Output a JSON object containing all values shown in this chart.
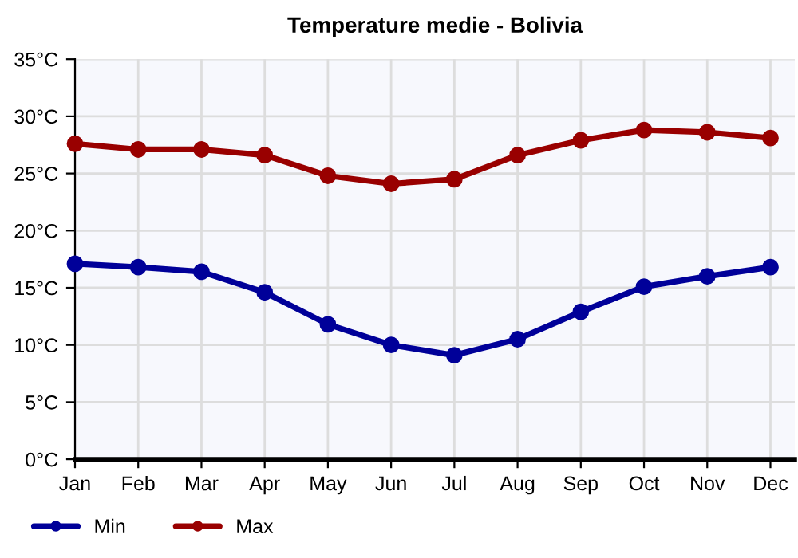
{
  "chart_data": {
    "type": "line",
    "title": "Temperature medie - Bolivia",
    "categories": [
      "Jan",
      "Feb",
      "Mar",
      "Apr",
      "May",
      "Jun",
      "Jul",
      "Aug",
      "Sep",
      "Oct",
      "Nov",
      "Dec"
    ],
    "series": [
      {
        "name": "Min",
        "color": "#000099",
        "values": [
          17.1,
          16.8,
          16.4,
          14.6,
          11.8,
          10.0,
          9.1,
          10.5,
          12.9,
          15.1,
          16.0,
          16.8
        ]
      },
      {
        "name": "Max",
        "color": "#990000",
        "values": [
          27.6,
          27.1,
          27.1,
          26.6,
          24.8,
          24.1,
          24.5,
          26.6,
          27.9,
          28.8,
          28.6,
          28.1
        ]
      }
    ],
    "ylim": [
      0,
      35
    ],
    "yticks": [
      {
        "value": 0,
        "label": "0°C"
      },
      {
        "value": 5,
        "label": "5°C"
      },
      {
        "value": 10,
        "label": "10°C"
      },
      {
        "value": 15,
        "label": "15°C"
      },
      {
        "value": 20,
        "label": "20°C"
      },
      {
        "value": 25,
        "label": "25°C"
      },
      {
        "value": 30,
        "label": "30°C"
      },
      {
        "value": 35,
        "label": "35°C"
      }
    ],
    "grid": true,
    "legend": "bottom left",
    "marker": "circle",
    "line_style": "solid"
  }
}
